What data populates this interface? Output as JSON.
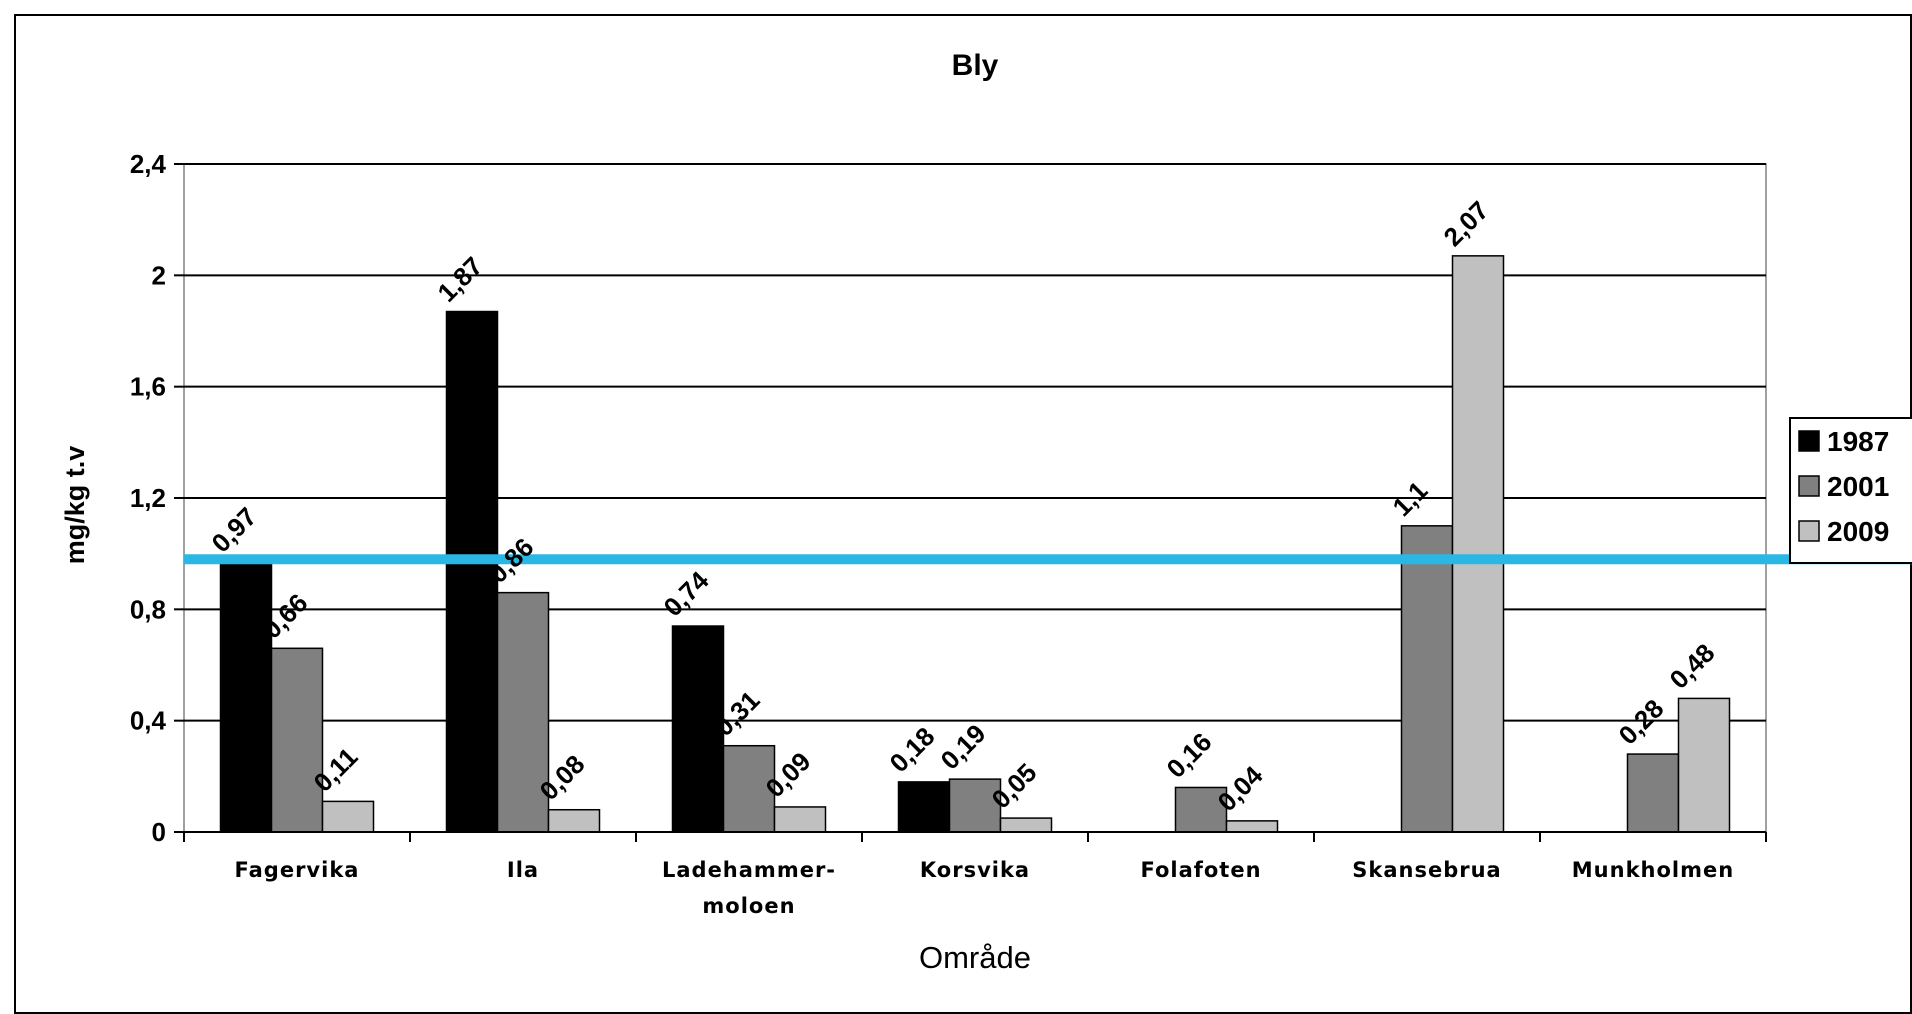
{
  "chart_data": {
    "type": "bar",
    "title": "Bly",
    "xlabel": "Område",
    "ylabel": "mg/kg t.v",
    "ylim": [
      0,
      2.4
    ],
    "yticks": [
      "0",
      "0,4",
      "0,8",
      "1,2",
      "1,6",
      "2",
      "2,4"
    ],
    "ytick_values": [
      0,
      0.4,
      0.8,
      1.2,
      1.6,
      2.0,
      2.4
    ],
    "categories": [
      [
        "Fagervika"
      ],
      [
        "Ila"
      ],
      [
        "Ladehammer-",
        "moloen"
      ],
      [
        "Korsvika"
      ],
      [
        "Folafoten"
      ],
      [
        "Skansebrua"
      ],
      [
        "Munkholmen"
      ]
    ],
    "series": [
      {
        "name": "1987",
        "color": "#000000",
        "values": [
          0.97,
          1.87,
          0.74,
          0.18,
          null,
          null,
          null
        ],
        "labels": [
          "0,97",
          "1,87",
          "0,74",
          "0,18",
          null,
          null,
          null
        ]
      },
      {
        "name": "2001",
        "color": "#808080",
        "values": [
          0.66,
          0.86,
          0.31,
          0.19,
          0.16,
          1.1,
          0.28
        ],
        "labels": [
          "0,66",
          "0,86",
          "0,31",
          "0,19",
          "0,16",
          "1,1",
          "0,28"
        ]
      },
      {
        "name": "2009",
        "color": "#c0c0c0",
        "values": [
          0.11,
          0.08,
          0.09,
          0.05,
          0.04,
          2.07,
          0.48
        ],
        "labels": [
          "0,11",
          "0,08",
          "0,09",
          "0,05",
          "0,04",
          "2,07",
          "0,48"
        ]
      }
    ],
    "reference_line": {
      "value": 0.98,
      "color": "#2ab7e6"
    },
    "grid": true,
    "legend_position": "right"
  }
}
